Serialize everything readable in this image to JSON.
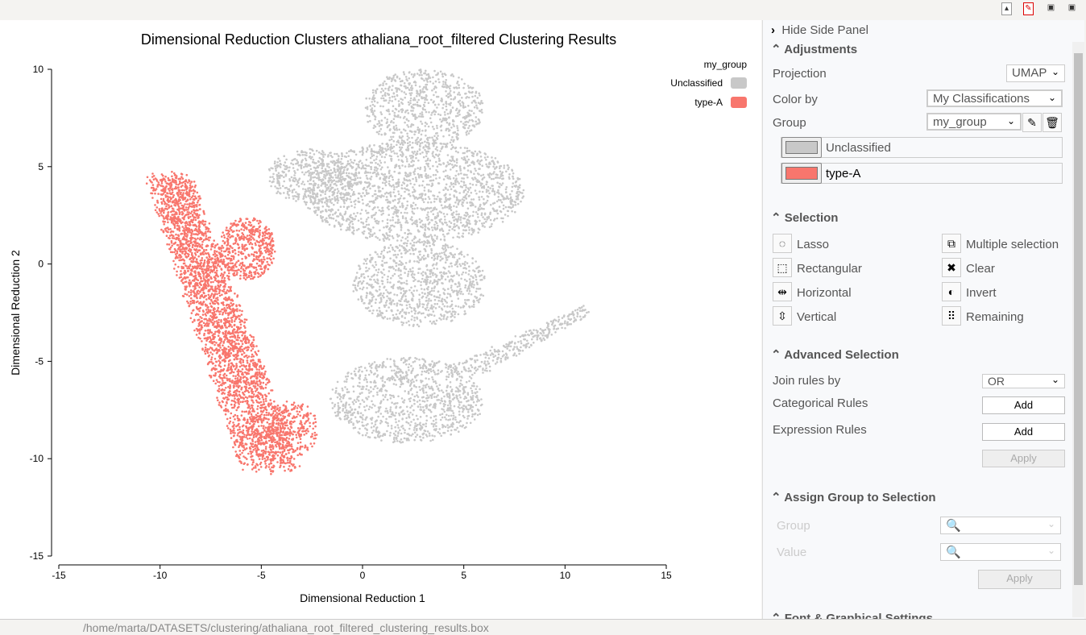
{
  "toolbar": {
    "icons": [
      "export-image-icon",
      "export-pdf-icon",
      "save-icon",
      "save-as-icon"
    ]
  },
  "plot": {
    "title": "Dimensional Reduction Clusters athaliana_root_filtered Clustering Results"
  },
  "chart_data": {
    "type": "scatter",
    "title": "Dimensional Reduction Clusters athaliana_root_filtered Clustering Results",
    "xlabel": "Dimensional Reduction 1",
    "ylabel": "Dimensional Reduction 2",
    "xlim": [
      -15,
      15
    ],
    "ylim": [
      -15,
      10
    ],
    "xticks": [
      "-15",
      "-10",
      "-5",
      "0",
      "5",
      "10",
      "15"
    ],
    "yticks": [
      "10",
      "5",
      "0",
      "-5",
      "-10",
      "-15"
    ],
    "grid": false,
    "legend": {
      "title": "my_group",
      "placement": "top-right",
      "entries": [
        {
          "name": "Unclassified",
          "color": "#c8c8c8"
        },
        {
          "name": "type-A",
          "color": "#f8766d"
        }
      ]
    }
  },
  "panel": {
    "hide_label": "Hide Side Panel",
    "adjustments": {
      "title": "Adjustments",
      "projection_label": "Projection",
      "projection": "UMAP",
      "color_by_label": "Color by",
      "color_by": "My Classifications",
      "group_label": "Group",
      "group": "my_group",
      "classes": [
        {
          "name": "Unclassified",
          "color": "#c8c8c8"
        },
        {
          "name": "type-A",
          "color": "#f8766d"
        }
      ]
    },
    "selection": {
      "title": "Selection",
      "tools": [
        {
          "label": "Lasso",
          "icon": "lasso-icon",
          "g": "◌"
        },
        {
          "label": "Multiple selection",
          "icon": "multiple-selection-icon",
          "g": "⧉"
        },
        {
          "label": "Rectangular",
          "icon": "rectangle-select-icon",
          "g": "⬚"
        },
        {
          "label": "Clear",
          "icon": "clear-icon",
          "g": "✖"
        },
        {
          "label": "Horizontal",
          "icon": "horizontal-icon",
          "g": "⇹"
        },
        {
          "label": "Invert",
          "icon": "invert-icon",
          "g": "◐"
        },
        {
          "label": "Vertical",
          "icon": "vertical-icon",
          "g": "⇳"
        },
        {
          "label": "Remaining",
          "icon": "remaining-icon",
          "g": "⠿"
        }
      ]
    },
    "advanced": {
      "title": "Advanced Selection",
      "join_label": "Join rules by",
      "join": "OR",
      "cat_label": "Categorical Rules",
      "expr_label": "Expression Rules",
      "add": "Add",
      "apply": "Apply"
    },
    "assign": {
      "title": "Assign Group to Selection",
      "group_label": "Group",
      "value_label": "Value",
      "apply": "Apply"
    },
    "font": {
      "title": "Font & Graphical Settings"
    }
  },
  "status": {
    "path": "/home/marta/DATASETS/clustering/athaliana_root_filtered_clustering_results.box"
  }
}
